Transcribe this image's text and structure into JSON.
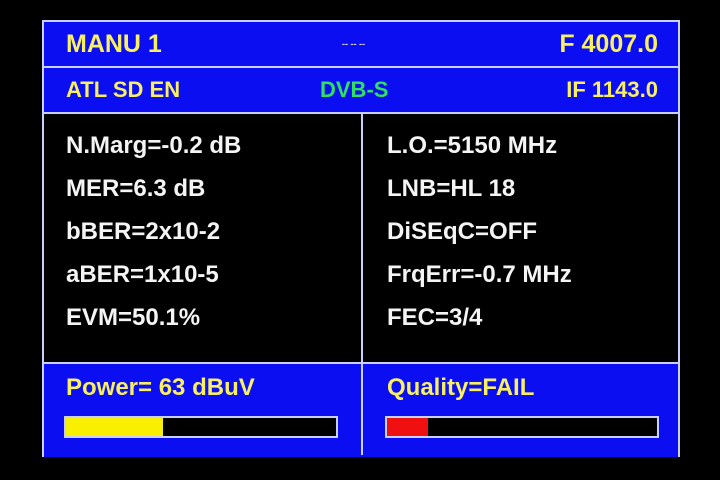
{
  "header": {
    "mode": "MANU 1",
    "center": "-- -- --",
    "frequency": "F 4007.0"
  },
  "subheader": {
    "channel": "ATL SD EN",
    "standard": "DVB-S",
    "if": "IF 1143.0",
    "standard_color": "#30e060"
  },
  "left_params": [
    "N.Marg=-0.2 dB",
    "MER=6.3 dB",
    "bBER=2x10-2",
    "aBER=1x10-5",
    "EVM=50.1%"
  ],
  "right_params": [
    "L.O.=5150 MHz",
    "LNB=HL 18",
    "DiSEqC=OFF",
    "FrqErr=-0.7 MHz",
    "FEC=3/4"
  ],
  "power": {
    "label": "Power=  63 dBuV",
    "level_percent": 36,
    "color": "#f8f000"
  },
  "quality": {
    "label": "Quality=FAIL",
    "level_percent": 15,
    "color": "#f01010"
  }
}
